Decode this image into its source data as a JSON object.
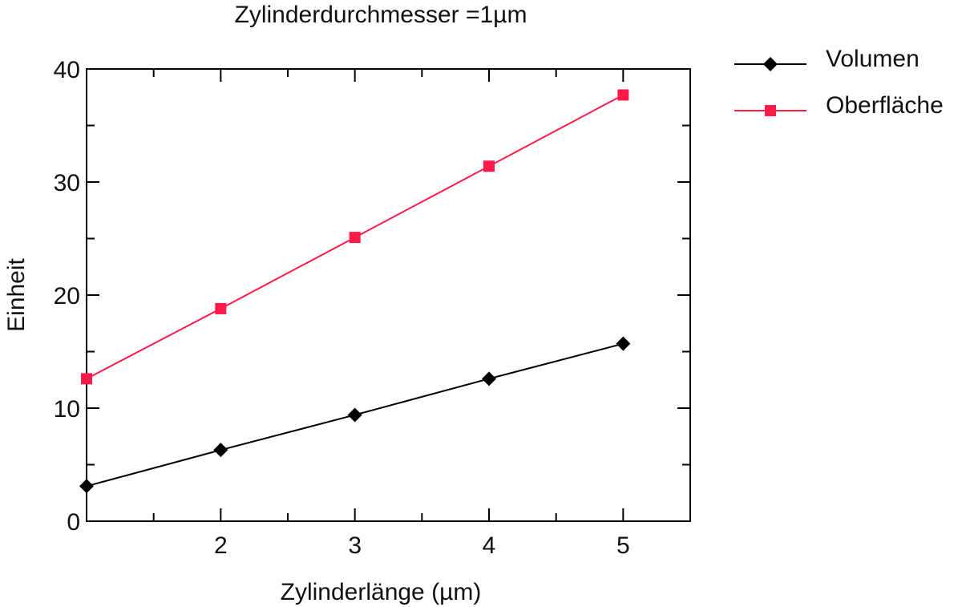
{
  "chart_data": {
    "type": "line",
    "title": "Zylinderdurchmesser =1µm",
    "xlabel": "Zylinderlänge (µm)",
    "ylabel": "Einheit",
    "xlim": [
      1,
      5.5
    ],
    "ylim": [
      0,
      40
    ],
    "x_ticks": [
      2,
      3,
      4,
      5
    ],
    "y_ticks": [
      0,
      10,
      20,
      30,
      40
    ],
    "x_minor_ticks": [
      1.5,
      2.5,
      3.5,
      4.5
    ],
    "y_minor_ticks": [
      5,
      15,
      25,
      35
    ],
    "legend_position": "top-right-outside",
    "series": [
      {
        "name": "Volumen",
        "color": "#000000",
        "marker": "diamond",
        "x": [
          1,
          2,
          3,
          4,
          5
        ],
        "y": [
          3.1,
          6.3,
          9.4,
          12.6,
          15.7
        ]
      },
      {
        "name": "Oberfläche",
        "color": "#ff1a4a",
        "marker": "square",
        "x": [
          1,
          2,
          3,
          4,
          5
        ],
        "y": [
          12.6,
          18.8,
          25.1,
          31.4,
          37.7
        ]
      }
    ]
  }
}
